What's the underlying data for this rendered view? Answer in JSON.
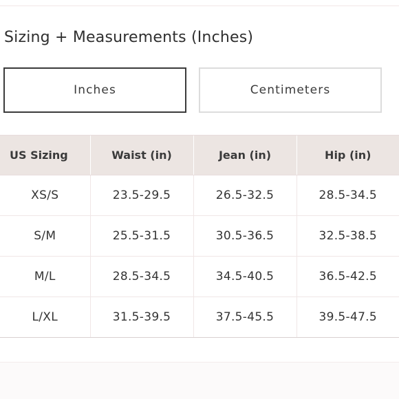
{
  "section": {
    "title": "Sizing + Measurements (Inches)"
  },
  "units": {
    "inches_label": "Inches",
    "centimeters_label": "Centimeters",
    "selected": "Inches"
  },
  "table": {
    "headers": [
      "US Sizing",
      "Waist (in)",
      "Jean (in)",
      "Hip (in)"
    ],
    "rows": [
      [
        "XS/S",
        "23.5-29.5",
        "26.5-32.5",
        "28.5-34.5"
      ],
      [
        "S/M",
        "25.5-31.5",
        "30.5-36.5",
        "32.5-38.5"
      ],
      [
        "M/L",
        "28.5-34.5",
        "34.5-40.5",
        "36.5-42.5"
      ],
      [
        "L/XL",
        "31.5-39.5",
        "37.5-45.5",
        "39.5-47.5"
      ]
    ]
  },
  "colors": {
    "header_bg": "#ece5e2",
    "active_border": "#3a3a3a",
    "inactive_border": "#dcdcdc",
    "row_divider": "#f0e6e6"
  }
}
